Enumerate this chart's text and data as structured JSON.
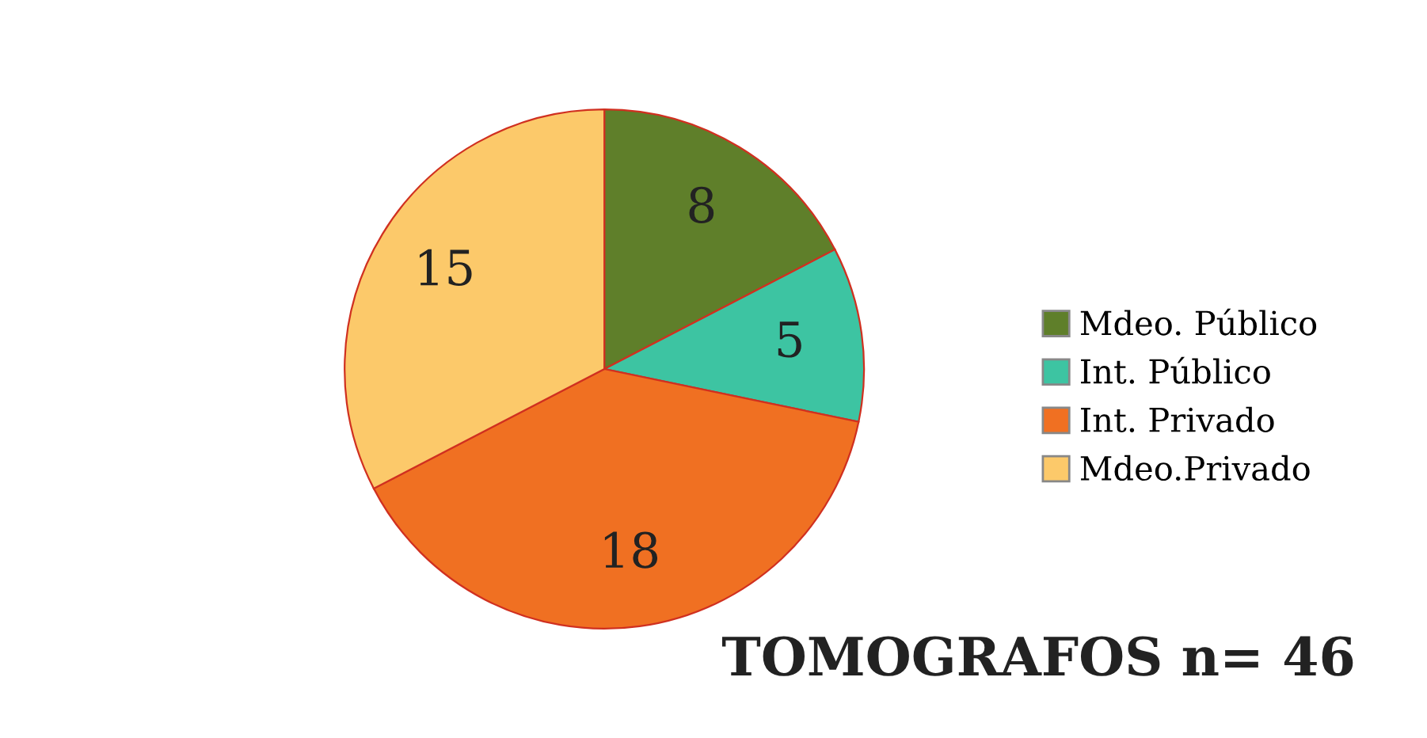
{
  "chart_data": {
    "type": "pie",
    "categories": [
      "Mdeo. Público",
      "Int. Público",
      "Int. Privado",
      "Mdeo.Privado"
    ],
    "values": [
      8,
      5,
      18,
      15
    ],
    "colors": [
      "#5f7f2a",
      "#3dc4a2",
      "#f07022",
      "#fcc96a"
    ],
    "data_labels": true,
    "legend": "right",
    "annotations": [
      "TOMOGRAFOS n= 46"
    ]
  }
}
